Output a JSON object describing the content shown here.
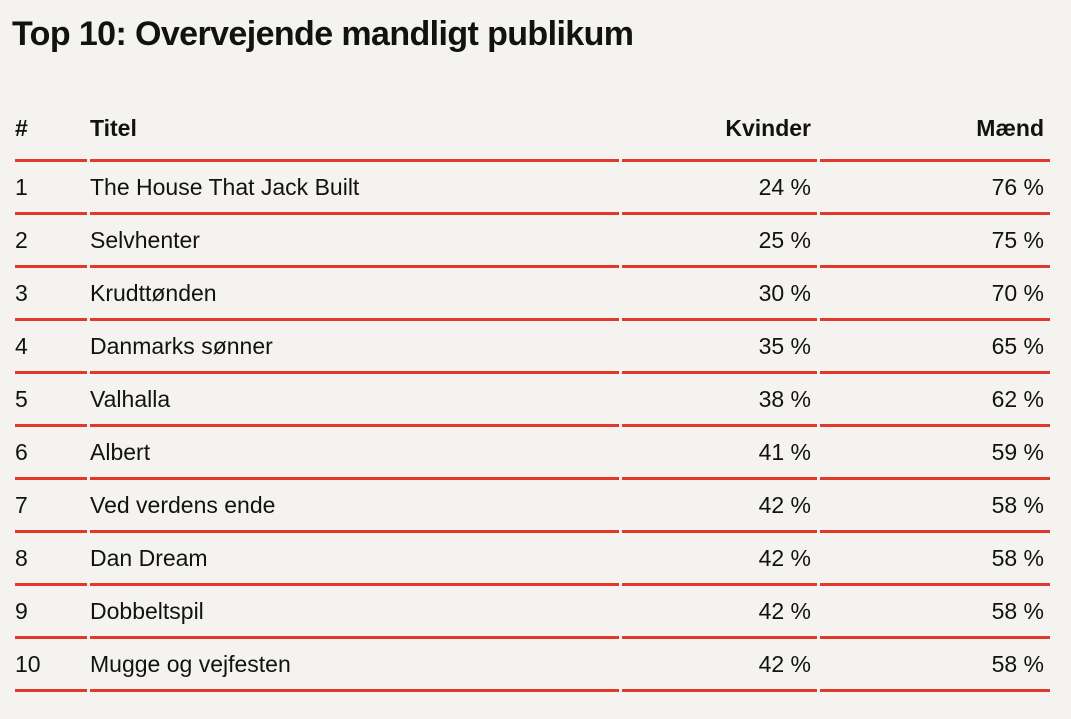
{
  "title": "Top 10: Overvejende mandligt publikum",
  "colors": {
    "background": "#f4f3f0",
    "rule_red": "#e0392c",
    "text": "#121212"
  },
  "table": {
    "columns": [
      {
        "key": "rank",
        "label": "#"
      },
      {
        "key": "titel",
        "label": "Titel"
      },
      {
        "key": "kvinder",
        "label": "Kvinder"
      },
      {
        "key": "maend",
        "label": "Mænd"
      }
    ],
    "rows": [
      {
        "rank": "1",
        "titel": "The House That Jack Built",
        "kvinder": "24 %",
        "maend": "76 %"
      },
      {
        "rank": "2",
        "titel": "Selvhenter",
        "kvinder": "25 %",
        "maend": "75 %"
      },
      {
        "rank": "3",
        "titel": "Krudttønden",
        "kvinder": "30 %",
        "maend": "70 %"
      },
      {
        "rank": "4",
        "titel": "Danmarks sønner",
        "kvinder": "35 %",
        "maend": "65 %"
      },
      {
        "rank": "5",
        "titel": "Valhalla",
        "kvinder": "38 %",
        "maend": "62 %"
      },
      {
        "rank": "6",
        "titel": "Albert",
        "kvinder": "41 %",
        "maend": "59 %"
      },
      {
        "rank": "7",
        "titel": "Ved verdens ende",
        "kvinder": "42 %",
        "maend": "58 %"
      },
      {
        "rank": "8",
        "titel": "Dan Dream",
        "kvinder": "42 %",
        "maend": "58 %"
      },
      {
        "rank": "9",
        "titel": "Dobbeltspil",
        "kvinder": "42 %",
        "maend": "58 %"
      },
      {
        "rank": "10",
        "titel": "Mugge og vejfesten",
        "kvinder": "42 %",
        "maend": "58 %"
      }
    ]
  },
  "chart_data": {
    "type": "table",
    "title": "Top 10: Overvejende mandligt publikum",
    "columns": [
      "#",
      "Titel",
      "Kvinder",
      "Mænd"
    ],
    "categories": [
      "The House That Jack Built",
      "Selvhenter",
      "Krudttønden",
      "Danmarks sønner",
      "Valhalla",
      "Albert",
      "Ved verdens ende",
      "Dan Dream",
      "Dobbeltspil",
      "Mugge og vejfesten"
    ],
    "series": [
      {
        "name": "Kvinder",
        "unit": "%",
        "values": [
          24,
          25,
          30,
          35,
          38,
          41,
          42,
          42,
          42,
          42
        ]
      },
      {
        "name": "Mænd",
        "unit": "%",
        "values": [
          76,
          75,
          70,
          65,
          62,
          59,
          58,
          58,
          58,
          58
        ]
      }
    ]
  }
}
